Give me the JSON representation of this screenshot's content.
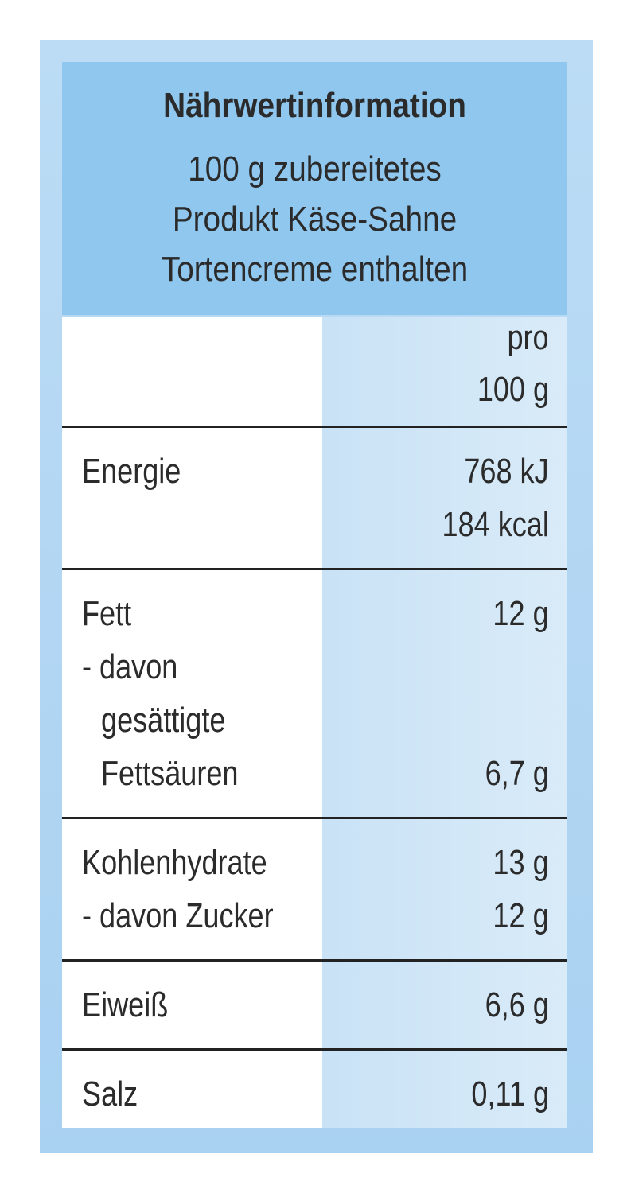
{
  "header": {
    "title": "Nährwertinformation",
    "subtitle": [
      "100 g zubereitetes",
      "Produkt Käse-Sahne",
      "Tortencreme enthalten"
    ]
  },
  "table": {
    "column_header": [
      "pro",
      "100 g"
    ],
    "rows": [
      [
        {
          "label": "Energie",
          "value": "768 kJ"
        },
        {
          "value": "184 kcal"
        }
      ],
      [
        {
          "label": "Fett",
          "value": "12 g"
        },
        {
          "label": "- davon"
        },
        {
          "label": "gesättigte"
        },
        {
          "label": "Fettsäuren",
          "value": "6,7 g"
        }
      ],
      [
        {
          "label": "Kohlenhydrate",
          "value": "13 g"
        },
        {
          "label": "- davon Zucker",
          "value": "12 g"
        }
      ],
      [
        {
          "label": "Eiweiß",
          "value": "6,6 g"
        }
      ],
      [
        {
          "label": "Salz",
          "value": "0,11 g"
        }
      ]
    ]
  }
}
